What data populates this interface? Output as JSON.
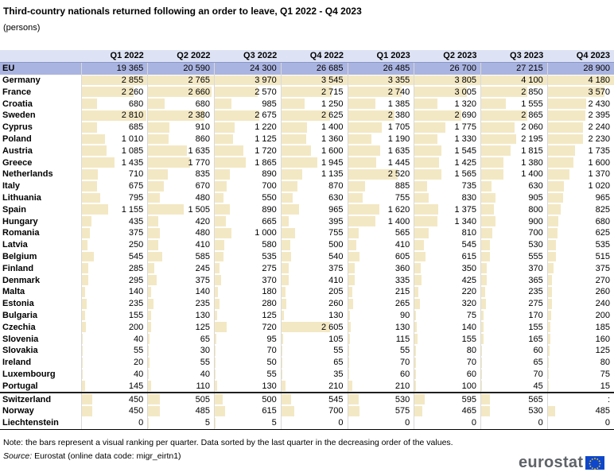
{
  "title": "Third-country nationals returned following an order to leave, Q1 2022 - Q4 2023",
  "subtitle": "(persons)",
  "note": "Note: the bars represent a visual ranking per quarter. Data sorted by the last quarter in the decreasing order of the values.",
  "source_label": "Source:",
  "source_text": " Eurostat (online data code: migr_eirtn1)",
  "logo_text": "eurostat",
  "colors": {
    "header_bg": "#dde3f4",
    "eu_row_bg": "#aab4e0",
    "bar": "#f3e8c4",
    "logo_flag": "#0e47cb"
  },
  "icons": {
    "logo": "eu-flag-icon"
  },
  "chart_data": {
    "type": "table",
    "title": "Third-country nationals returned following an order to leave, Q1 2022 - Q4 2023",
    "subtitle": "(persons)",
    "columns": [
      "Q1 2022",
      "Q2 2022",
      "Q3 2022",
      "Q4 2022",
      "Q1 2023",
      "Q2 2023",
      "Q3 2023",
      "Q4 2023"
    ],
    "rows": [
      {
        "name": "EU",
        "values": [
          "19 365",
          "20 590",
          "24 300",
          "26 685",
          "26 485",
          "26 700",
          "27 215",
          "28 900"
        ]
      },
      {
        "name": "Germany",
        "values": [
          "2 855",
          "2 765",
          "3 970",
          "3 545",
          "3 355",
          "3 805",
          "4 100",
          "4 180"
        ]
      },
      {
        "name": "France",
        "values": [
          "2 260",
          "2 660",
          "2 570",
          "2 715",
          "2 740",
          "3 005",
          "2 850",
          "3 570"
        ]
      },
      {
        "name": "Croatia",
        "values": [
          "680",
          "680",
          "985",
          "1 250",
          "1 385",
          "1 320",
          "1 555",
          "2 430"
        ]
      },
      {
        "name": "Sweden",
        "values": [
          "2 810",
          "2 380",
          "2 675",
          "2 625",
          "2 380",
          "2 690",
          "2 865",
          "2 395"
        ]
      },
      {
        "name": "Cyprus",
        "values": [
          "685",
          "910",
          "1 220",
          "1 400",
          "1 705",
          "1 775",
          "2 060",
          "2 240"
        ]
      },
      {
        "name": "Poland",
        "values": [
          "1 010",
          "860",
          "1 125",
          "1 360",
          "1 190",
          "1 330",
          "2 195",
          "2 230"
        ]
      },
      {
        "name": "Austria",
        "values": [
          "1 085",
          "1 635",
          "1 720",
          "1 600",
          "1 635",
          "1 545",
          "1 815",
          "1 735"
        ]
      },
      {
        "name": "Greece",
        "values": [
          "1 435",
          "1 770",
          "1 865",
          "1 945",
          "1 445",
          "1 425",
          "1 380",
          "1 600"
        ]
      },
      {
        "name": "Netherlands",
        "values": [
          "710",
          "835",
          "890",
          "1 135",
          "2 520",
          "1 565",
          "1 400",
          "1 370"
        ]
      },
      {
        "name": "Italy",
        "values": [
          "675",
          "670",
          "700",
          "870",
          "885",
          "735",
          "630",
          "1 020"
        ]
      },
      {
        "name": "Lithuania",
        "values": [
          "795",
          "480",
          "550",
          "630",
          "755",
          "830",
          "905",
          "965"
        ]
      },
      {
        "name": "Spain",
        "values": [
          "1 155",
          "1 505",
          "890",
          "965",
          "1 620",
          "1 375",
          "800",
          "825"
        ]
      },
      {
        "name": "Hungary",
        "values": [
          "435",
          "420",
          "665",
          "395",
          "1 400",
          "1 340",
          "900",
          "680"
        ]
      },
      {
        "name": "Romania",
        "values": [
          "375",
          "480",
          "1 000",
          "755",
          "565",
          "810",
          "700",
          "625"
        ]
      },
      {
        "name": "Latvia",
        "values": [
          "250",
          "410",
          "580",
          "500",
          "410",
          "545",
          "530",
          "535"
        ]
      },
      {
        "name": "Belgium",
        "values": [
          "545",
          "585",
          "535",
          "540",
          "605",
          "615",
          "555",
          "515"
        ]
      },
      {
        "name": "Finland",
        "values": [
          "285",
          "245",
          "275",
          "375",
          "360",
          "350",
          "370",
          "375"
        ]
      },
      {
        "name": "Denmark",
        "values": [
          "295",
          "375",
          "370",
          "410",
          "335",
          "425",
          "365",
          "270"
        ]
      },
      {
        "name": "Malta",
        "values": [
          "140",
          "140",
          "180",
          "205",
          "215",
          "220",
          "235",
          "260"
        ]
      },
      {
        "name": "Estonia",
        "values": [
          "235",
          "235",
          "280",
          "260",
          "265",
          "320",
          "275",
          "240"
        ]
      },
      {
        "name": "Bulgaria",
        "values": [
          "155",
          "130",
          "125",
          "130",
          "90",
          "75",
          "170",
          "200"
        ]
      },
      {
        "name": "Czechia",
        "values": [
          "200",
          "125",
          "720",
          "2 605",
          "130",
          "140",
          "155",
          "185"
        ]
      },
      {
        "name": "Slovenia",
        "values": [
          "40",
          "65",
          "95",
          "105",
          "115",
          "155",
          "165",
          "160"
        ]
      },
      {
        "name": "Slovakia",
        "values": [
          "55",
          "30",
          "70",
          "55",
          "55",
          "80",
          "60",
          "125"
        ]
      },
      {
        "name": "Ireland",
        "values": [
          "20",
          "55",
          "50",
          "65",
          "70",
          "70",
          "65",
          "80"
        ]
      },
      {
        "name": "Luxembourg",
        "values": [
          "40",
          "40",
          "55",
          "35",
          "60",
          "60",
          "70",
          "75"
        ]
      },
      {
        "name": "Portugal",
        "values": [
          "145",
          "110",
          "130",
          "210",
          "210",
          "100",
          "45",
          "15"
        ]
      },
      {
        "name": "Switzerland",
        "values": [
          "450",
          "505",
          "500",
          "545",
          "530",
          "595",
          "565",
          ":"
        ]
      },
      {
        "name": "Norway",
        "values": [
          "450",
          "485",
          "615",
          "700",
          "575",
          "465",
          "530",
          "485"
        ]
      },
      {
        "name": "Liechtenstein",
        "values": [
          "0",
          "5",
          "5",
          "0",
          "0",
          "0",
          "0",
          "0"
        ]
      }
    ]
  }
}
